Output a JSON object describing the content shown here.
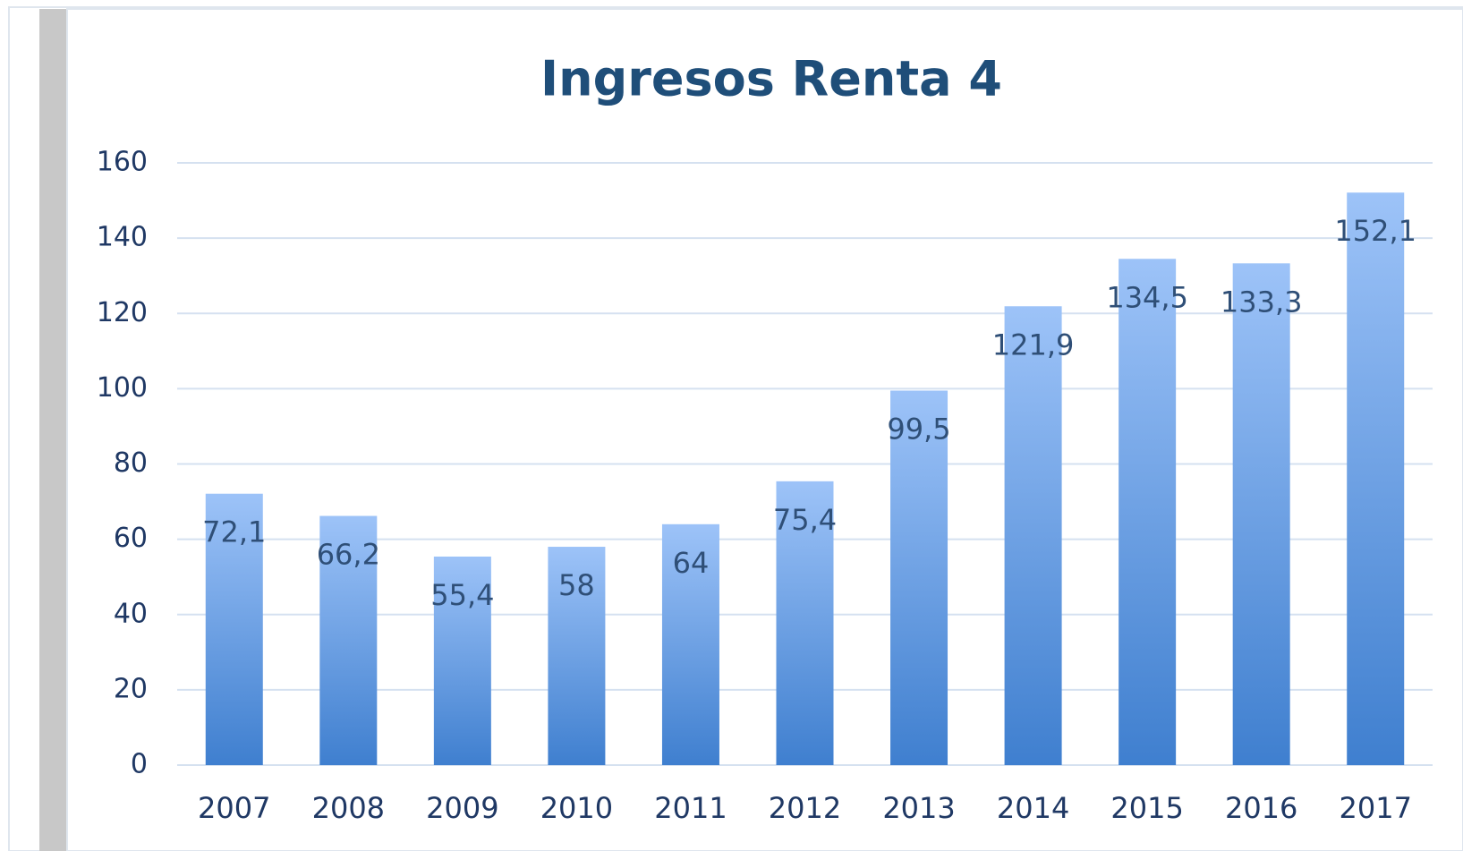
{
  "chart_data": {
    "type": "bar",
    "title": "Ingresos Renta 4",
    "categories": [
      "2007",
      "2008",
      "2009",
      "2010",
      "2011",
      "2012",
      "2013",
      "2014",
      "2015",
      "2016",
      "2017"
    ],
    "values": [
      72.1,
      66.2,
      55.4,
      58,
      64,
      75.4,
      99.5,
      121.9,
      134.5,
      133.3,
      152.1
    ],
    "value_labels": [
      "72,1",
      "66,2",
      "55,4",
      "58",
      "64",
      "75,4",
      "99,5",
      "121,9",
      "134,5",
      "133,3",
      "152,1"
    ],
    "color": "#5b9bd5",
    "ylim": [
      0,
      160
    ],
    "yticks": [
      0,
      20,
      40,
      60,
      80,
      100,
      120,
      140,
      160
    ],
    "grid": true
  }
}
